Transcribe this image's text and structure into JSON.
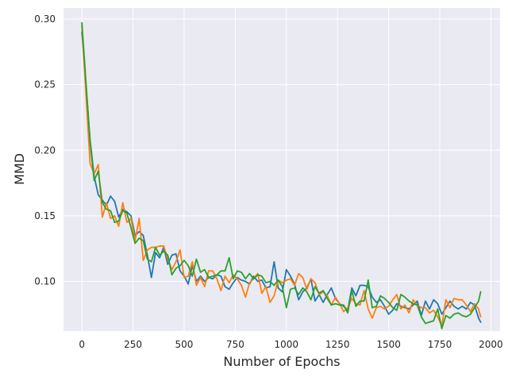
{
  "chart_data": {
    "type": "line",
    "title": "",
    "xlabel": "Number of Epochs",
    "ylabel": "MMD",
    "xlim": [
      -90,
      2045
    ],
    "ylim": [
      0.0622,
      0.3085
    ],
    "x_ticks": [
      0,
      250,
      500,
      750,
      1000,
      1250,
      1500,
      1750,
      2000
    ],
    "x_tick_labels": [
      "0",
      "250",
      "500",
      "750",
      "1000",
      "1250",
      "1500",
      "1750",
      "2000"
    ],
    "y_ticks": [
      0.1,
      0.15,
      0.2,
      0.25,
      0.3
    ],
    "y_tick_labels": [
      "0.10",
      "0.15",
      "0.20",
      "0.25",
      "0.30"
    ],
    "grid": true,
    "legend": "none",
    "style": "seaborn-darkgrid",
    "colors": {
      "background": "#eaeaf2",
      "grid": "#ffffff",
      "text": "#262626"
    },
    "x": [
      0,
      40,
      60,
      80,
      100,
      120,
      140,
      160,
      180,
      200,
      220,
      240,
      260,
      280,
      300,
      320,
      340,
      360,
      380,
      400,
      420,
      440,
      460,
      480,
      500,
      520,
      540,
      560,
      580,
      600,
      620,
      640,
      660,
      680,
      700,
      720,
      740,
      760,
      780,
      800,
      820,
      840,
      860,
      880,
      900,
      920,
      940,
      960,
      980,
      1000,
      1020,
      1040,
      1060,
      1080,
      1100,
      1120,
      1140,
      1160,
      1180,
      1200,
      1220,
      1240,
      1260,
      1280,
      1300,
      1320,
      1340,
      1360,
      1380,
      1400,
      1420,
      1440,
      1460,
      1480,
      1500,
      1520,
      1540,
      1560,
      1580,
      1600,
      1620,
      1640,
      1660,
      1680,
      1700,
      1720,
      1740,
      1760,
      1780,
      1800,
      1820,
      1840,
      1860,
      1880,
      1900,
      1920,
      1940,
      1950
    ],
    "series": [
      {
        "color": "#1f77b4",
        "values": [
          0.29,
          0.208,
          0.18,
          0.166,
          0.162,
          0.158,
          0.165,
          0.161,
          0.149,
          0.155,
          0.153,
          0.15,
          0.135,
          0.138,
          0.135,
          0.12,
          0.103,
          0.122,
          0.118,
          0.126,
          0.113,
          0.12,
          0.121,
          0.108,
          0.104,
          0.098,
          0.112,
          0.1,
          0.104,
          0.1,
          0.103,
          0.102,
          0.105,
          0.104,
          0.096,
          0.094,
          0.099,
          0.103,
          0.101,
          0.1,
          0.098,
          0.104,
          0.1,
          0.101,
          0.095,
          0.096,
          0.115,
          0.095,
          0.092,
          0.109,
          0.104,
          0.098,
          0.086,
          0.092,
          0.095,
          0.102,
          0.085,
          0.09,
          0.084,
          0.09,
          0.095,
          0.087,
          0.083,
          0.081,
          0.078,
          0.095,
          0.089,
          0.097,
          0.097,
          0.096,
          0.088,
          0.084,
          0.086,
          0.081,
          0.075,
          0.078,
          0.083,
          0.081,
          0.08,
          0.079,
          0.082,
          0.085,
          0.074,
          0.085,
          0.079,
          0.086,
          0.083,
          0.075,
          0.08,
          0.085,
          0.081,
          0.079,
          0.081,
          0.079,
          0.084,
          0.082,
          0.072,
          0.069
        ]
      },
      {
        "color": "#ff7f0e",
        "values": [
          0.295,
          0.19,
          0.182,
          0.189,
          0.149,
          0.16,
          0.148,
          0.15,
          0.142,
          0.16,
          0.145,
          0.148,
          0.131,
          0.148,
          0.116,
          0.124,
          0.126,
          0.126,
          0.127,
          0.127,
          0.117,
          0.109,
          0.115,
          0.124,
          0.103,
          0.104,
          0.115,
          0.097,
          0.103,
          0.096,
          0.108,
          0.108,
          0.102,
          0.093,
          0.104,
          0.099,
          0.105,
          0.102,
          0.097,
          0.088,
          0.099,
          0.102,
          0.106,
          0.091,
          0.096,
          0.084,
          0.089,
          0.101,
          0.099,
          0.101,
          0.102,
          0.097,
          0.106,
          0.103,
          0.094,
          0.102,
          0.099,
          0.09,
          0.092,
          0.089,
          0.082,
          0.088,
          0.083,
          0.077,
          0.08,
          0.087,
          0.083,
          0.082,
          0.093,
          0.079,
          0.072,
          0.08,
          0.081,
          0.079,
          0.081,
          0.086,
          0.09,
          0.079,
          0.082,
          0.076,
          0.086,
          0.082,
          0.08,
          0.08,
          0.076,
          0.078,
          0.073,
          0.066,
          0.086,
          0.08,
          0.087,
          0.086,
          0.086,
          0.082,
          0.077,
          0.083,
          0.079,
          0.073
        ]
      },
      {
        "color": "#2ca02c",
        "values": [
          0.297,
          0.206,
          0.177,
          0.184,
          0.16,
          0.155,
          0.154,
          0.145,
          0.146,
          0.154,
          0.152,
          0.141,
          0.129,
          0.133,
          0.131,
          0.117,
          0.115,
          0.126,
          0.12,
          0.123,
          0.12,
          0.105,
          0.11,
          0.112,
          0.116,
          0.112,
          0.104,
          0.117,
          0.107,
          0.109,
          0.103,
          0.104,
          0.105,
          0.108,
          0.108,
          0.118,
          0.102,
          0.108,
          0.107,
          0.102,
          0.106,
          0.102,
          0.105,
          0.104,
          0.099,
          0.1,
          0.097,
          0.101,
          0.096,
          0.08,
          0.094,
          0.095,
          0.09,
          0.095,
          0.092,
          0.086,
          0.096,
          0.091,
          0.093,
          0.087,
          0.082,
          0.083,
          0.082,
          0.082,
          0.076,
          0.093,
          0.081,
          0.085,
          0.085,
          0.101,
          0.08,
          0.081,
          0.089,
          0.087,
          0.084,
          0.08,
          0.078,
          0.09,
          0.088,
          0.085,
          0.083,
          0.082,
          0.073,
          0.068,
          0.069,
          0.07,
          0.079,
          0.064,
          0.074,
          0.072,
          0.075,
          0.076,
          0.074,
          0.073,
          0.075,
          0.08,
          0.085,
          0.092
        ]
      }
    ]
  }
}
